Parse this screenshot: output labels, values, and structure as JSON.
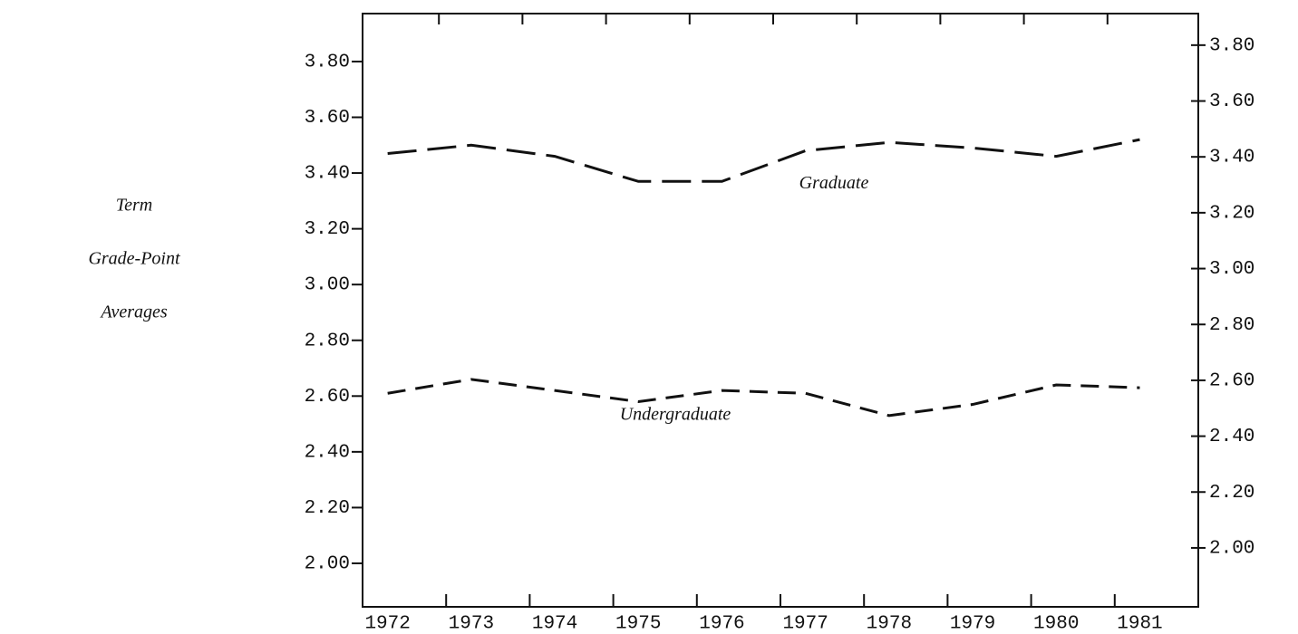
{
  "chart_data": {
    "type": "line",
    "ylabel": [
      "Term",
      "Grade-Point",
      "Averages"
    ],
    "categories": [
      "1972",
      "1973",
      "1974",
      "1975",
      "1976",
      "1977",
      "1978",
      "1979",
      "1980",
      "1981"
    ],
    "series": [
      {
        "name": "Graduate",
        "color": "#111111",
        "values": [
          3.47,
          3.5,
          3.46,
          3.37,
          3.37,
          3.48,
          3.51,
          3.49,
          3.46,
          3.52
        ]
      },
      {
        "name": "Undergraduate",
        "color": "#111111",
        "values": [
          2.61,
          2.66,
          2.62,
          2.58,
          2.62,
          2.61,
          2.53,
          2.57,
          2.64,
          2.63
        ]
      }
    ],
    "ylim": [
      1.844,
      3.972
    ],
    "yticks": [
      {
        "value": 2,
        "label": "2.00"
      },
      {
        "value": 2.2,
        "label": "2.20"
      },
      {
        "value": 2.4,
        "label": "2.40"
      },
      {
        "value": 2.6,
        "label": "2.60"
      },
      {
        "value": 2.8,
        "label": "2.80"
      },
      {
        "value": 3,
        "label": "3.00"
      },
      {
        "value": 3.2,
        "label": "3.20"
      },
      {
        "value": 3.4,
        "label": "3.40"
      },
      {
        "value": 3.6,
        "label": "3.60"
      },
      {
        "value": 3.8,
        "label": "3.80"
      }
    ],
    "y2lim": [
      1.789,
      3.913
    ],
    "y2ticks": [
      {
        "value": 2,
        "label": "2.00"
      },
      {
        "value": 2.2,
        "label": "2.20"
      },
      {
        "value": 2.4,
        "label": "2.40"
      },
      {
        "value": 2.6,
        "label": "2.60"
      },
      {
        "value": 2.8,
        "label": "2.80"
      },
      {
        "value": 3,
        "label": "3.00"
      },
      {
        "value": 3.2,
        "label": "3.20"
      },
      {
        "value": 3.4,
        "label": "3.40"
      },
      {
        "value": 3.6,
        "label": "3.60"
      },
      {
        "value": 3.8,
        "label": "3.80"
      }
    ]
  }
}
